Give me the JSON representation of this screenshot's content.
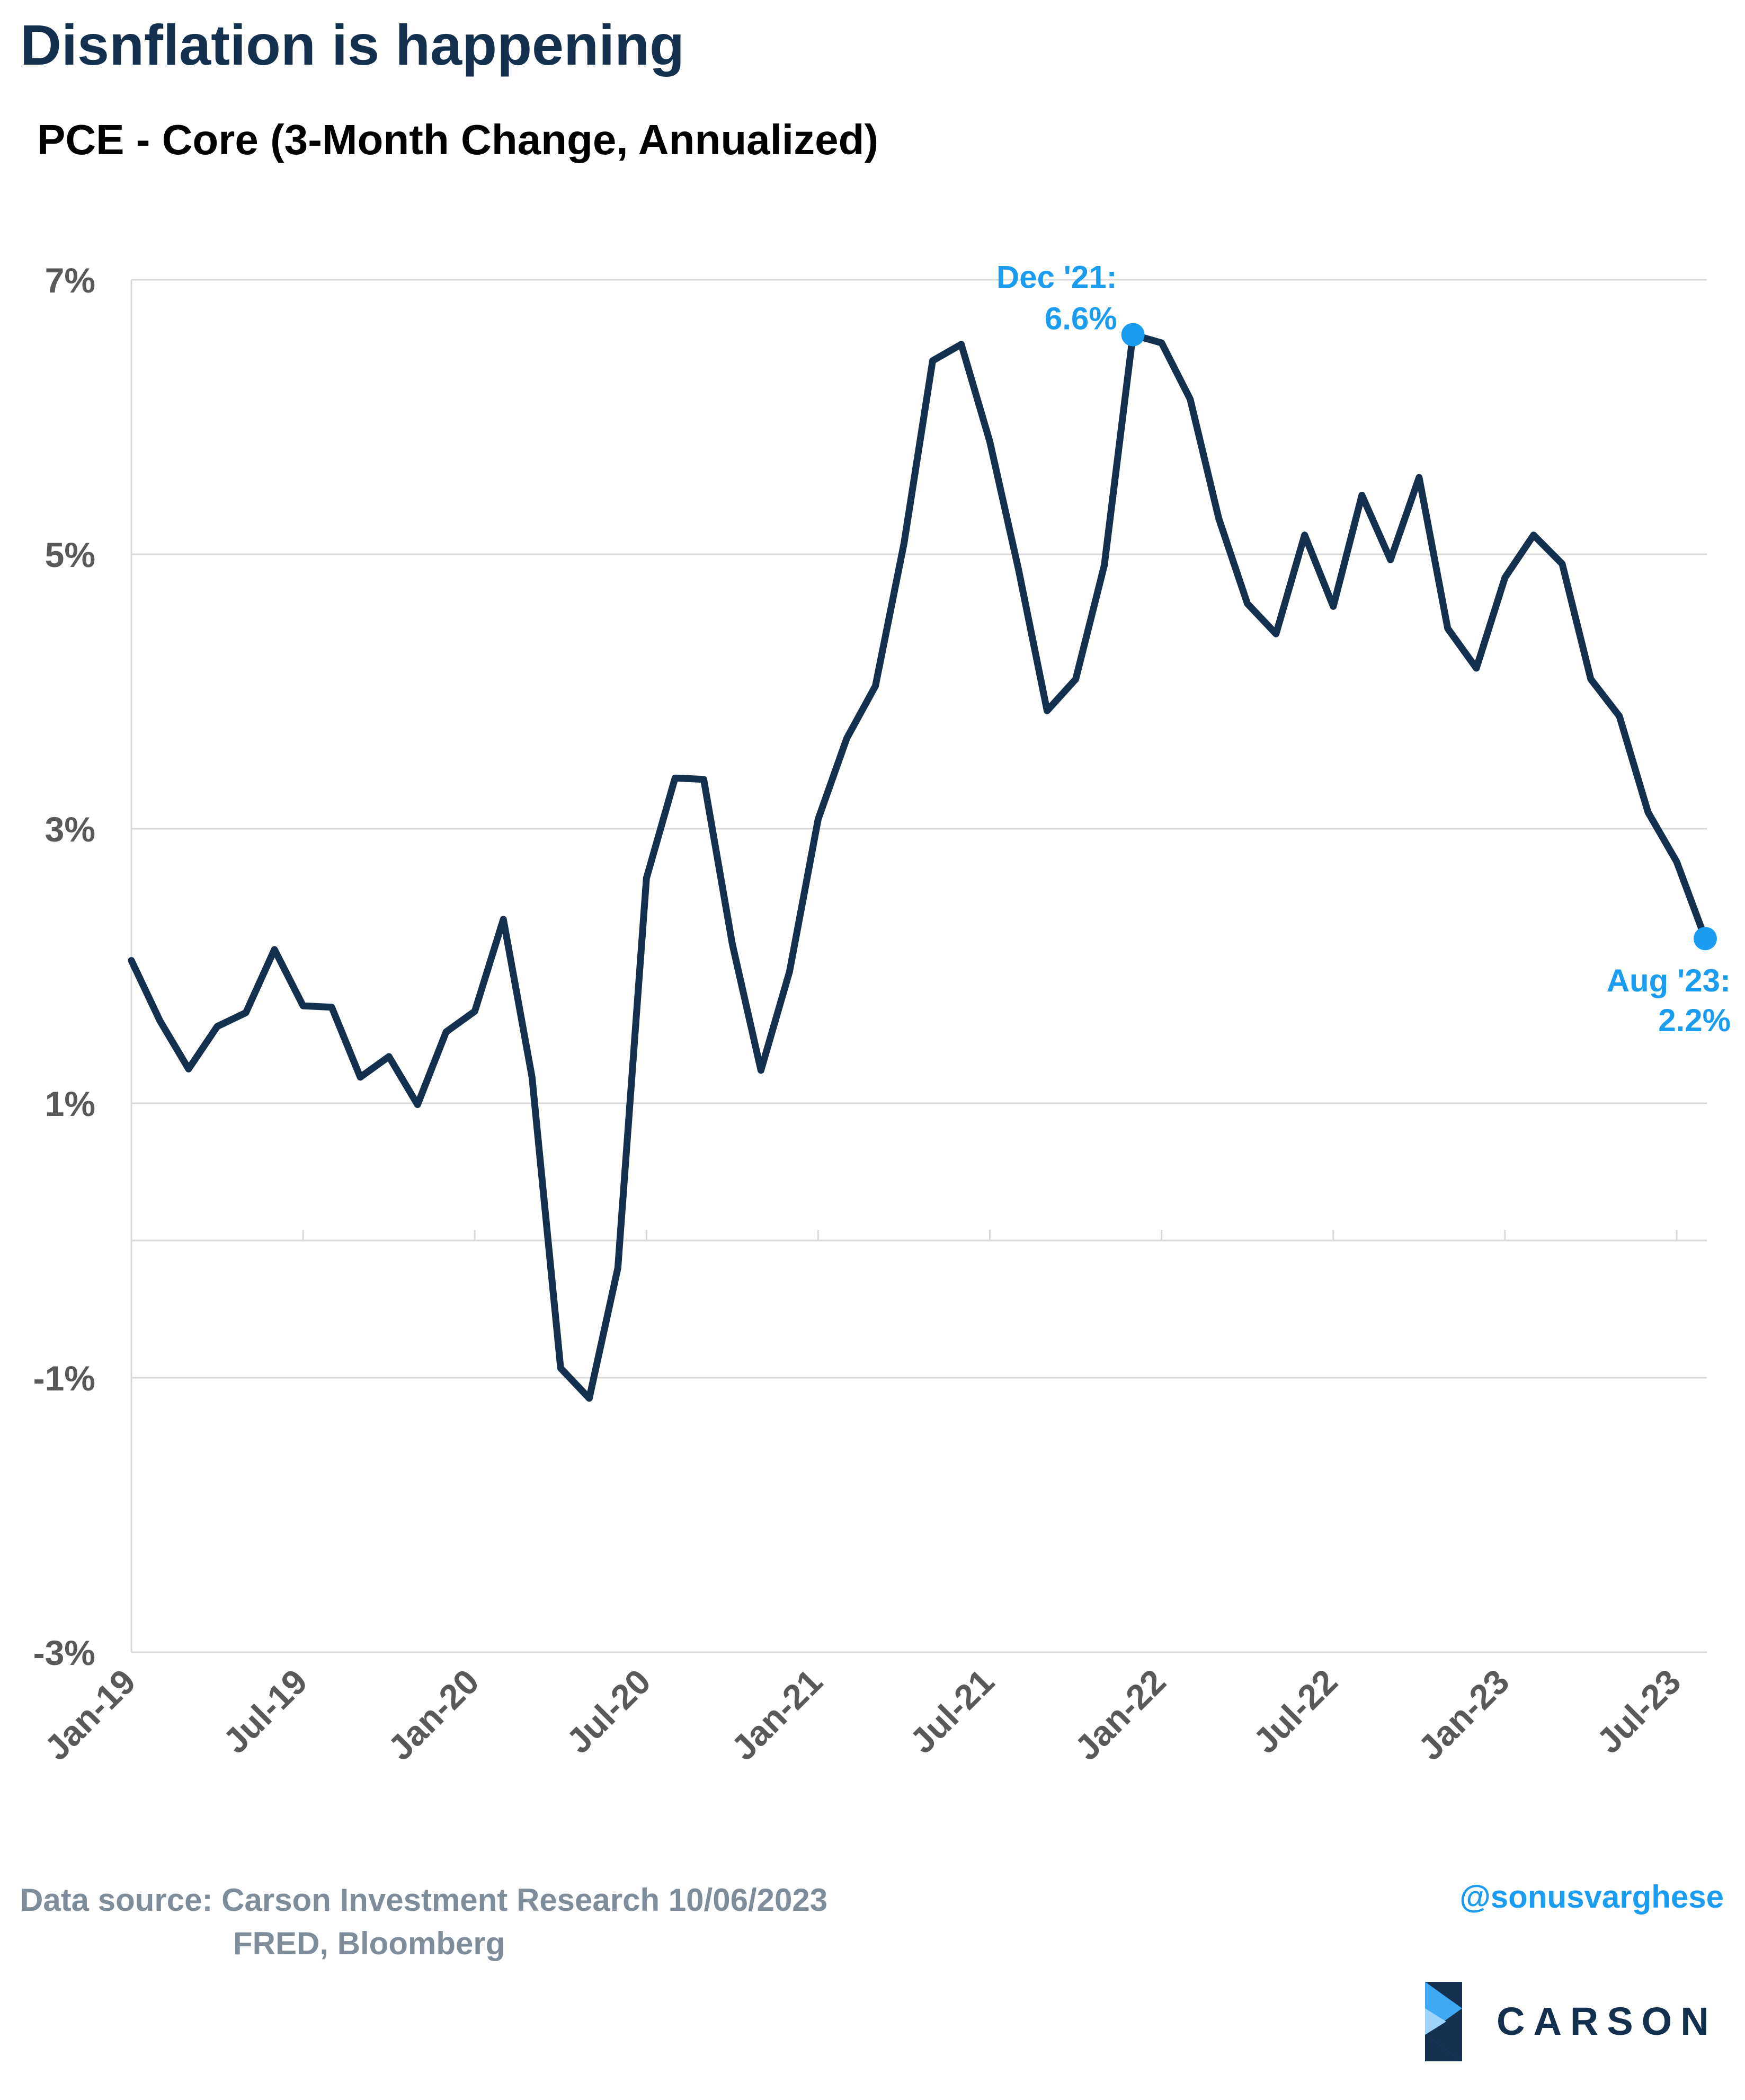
{
  "title": "Disnflation is happening",
  "subtitle": "PCE - Core (3-Month Change, Annualized)",
  "source": {
    "line1": "Data source: Carson Investment Research  10/06/2023",
    "line2": "FRED, Bloomberg"
  },
  "handle": "@sonusvarghese",
  "logo": {
    "text": "CARSON"
  },
  "colors": {
    "line": "#13304f",
    "accent": "#1a9cf0",
    "grid": "#d9d9d9",
    "tick_text": "#595959"
  },
  "chart_data": {
    "type": "line",
    "title": "PCE - Core (3-Month Change, Annualized)",
    "xlabel": "",
    "ylabel": "",
    "ylim": [
      -3,
      7
    ],
    "y_ticks": [
      {
        "value": 7,
        "label": "7%"
      },
      {
        "value": 5,
        "label": "5%"
      },
      {
        "value": 3,
        "label": "3%"
      },
      {
        "value": 1,
        "label": "1%"
      },
      {
        "value": -1,
        "label": "-1%"
      },
      {
        "value": -3,
        "label": "-3%"
      }
    ],
    "x_ticks": [
      {
        "index": 0,
        "label": "Jan-19"
      },
      {
        "index": 6,
        "label": "Jul-19"
      },
      {
        "index": 12,
        "label": "Jan-20"
      },
      {
        "index": 18,
        "label": "Jul-20"
      },
      {
        "index": 24,
        "label": "Jan-21"
      },
      {
        "index": 30,
        "label": "Jul-21"
      },
      {
        "index": 36,
        "label": "Jan-22"
      },
      {
        "index": 42,
        "label": "Jul-22"
      },
      {
        "index": 48,
        "label": "Jan-23"
      },
      {
        "index": 54,
        "label": "Jul-23"
      }
    ],
    "grid": true,
    "legend": "none",
    "series": [
      {
        "x": [
          "2019-01",
          "2019-02",
          "2019-03",
          "2019-04",
          "2019-05",
          "2019-06",
          "2019-07",
          "2019-08",
          "2019-09",
          "2019-10",
          "2019-11",
          "2019-12",
          "2020-01",
          "2020-02",
          "2020-03",
          "2020-04",
          "2020-05",
          "2020-06",
          "2020-07",
          "2020-08",
          "2020-09",
          "2020-10",
          "2020-11",
          "2020-12",
          "2021-01",
          "2021-02",
          "2021-03",
          "2021-04",
          "2021-05",
          "2021-06",
          "2021-07",
          "2021-08",
          "2021-09",
          "2021-10",
          "2021-11",
          "2021-12",
          "2022-01",
          "2022-02",
          "2022-03",
          "2022-04",
          "2022-05",
          "2022-06",
          "2022-07",
          "2022-08",
          "2022-09",
          "2022-10",
          "2022-11",
          "2022-12",
          "2023-01",
          "2023-02",
          "2023-03",
          "2023-04",
          "2023-05",
          "2023-06",
          "2023-07",
          "2023-08"
        ],
        "values": [
          2.04,
          1.6,
          1.25,
          1.56,
          1.66,
          2.12,
          1.71,
          1.7,
          1.19,
          1.34,
          0.99,
          1.52,
          1.67,
          2.34,
          1.19,
          -0.93,
          -1.15,
          -0.2,
          2.64,
          3.37,
          3.36,
          2.16,
          1.24,
          1.96,
          3.07,
          3.66,
          4.04,
          5.08,
          6.41,
          6.53,
          5.82,
          4.89,
          3.86,
          4.09,
          4.92,
          6.6,
          6.54,
          6.13,
          5.26,
          4.64,
          4.42,
          5.14,
          4.62,
          5.43,
          4.96,
          5.56,
          4.46,
          4.17,
          4.83,
          5.14,
          4.93,
          4.09,
          3.82,
          3.12,
          2.76,
          2.2
        ]
      }
    ],
    "annotations": [
      {
        "index": 35,
        "value": 6.6,
        "line1": "Dec '21:",
        "line2": "6.6%"
      },
      {
        "index": 55,
        "value": 2.2,
        "line1": "Aug '23:",
        "line2": "2.2%"
      }
    ]
  }
}
